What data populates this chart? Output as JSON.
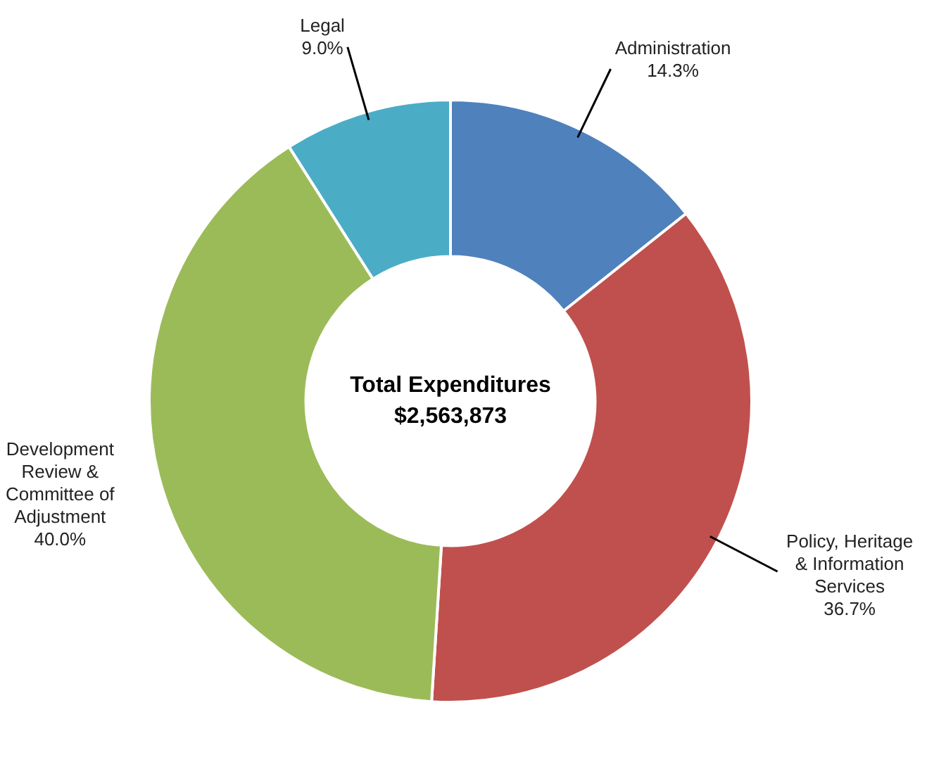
{
  "chart_data": {
    "type": "donut",
    "categories": [
      "Administration",
      "Policy, Heritage & Information Services",
      "Development Review & Committee of Adjustment",
      "Legal"
    ],
    "values": [
      14.3,
      36.7,
      40.0,
      9.0
    ],
    "colors": [
      "#4f81bd",
      "#c0504d",
      "#9bbb59",
      "#4bacc6"
    ],
    "value_labels": [
      "14.3%",
      "36.7%",
      "40.0%",
      "9.0%"
    ],
    "annotations": [
      "Total Expenditures",
      "$2,563,873"
    ]
  }
}
